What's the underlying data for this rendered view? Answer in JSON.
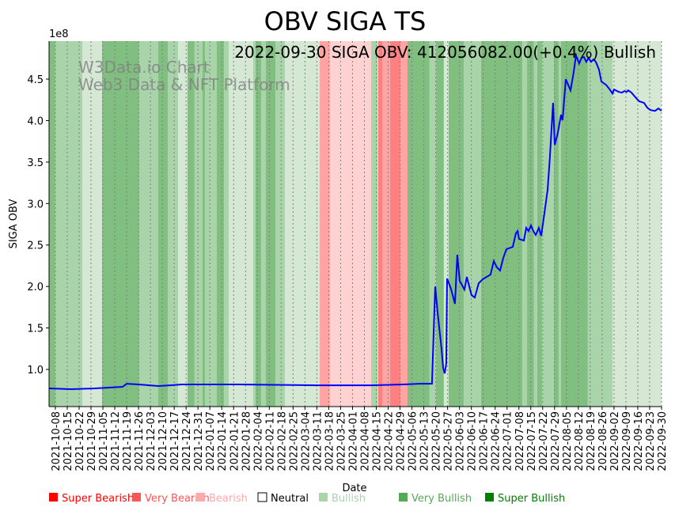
{
  "chart_data": {
    "type": "line",
    "title": "OBV SIGA TS",
    "annotation": "2022-09-30 SIGA OBV: 412056082.00(+0.4%) Bullish",
    "watermark": [
      "W3Data.io Chart",
      "Web3 Data & NFT Platform"
    ],
    "xlabel": "Date",
    "ylabel": "SIGA OBV",
    "y_offset_label": "1e8",
    "xlim_days": [
      0,
      360.7
    ],
    "ylim": [
      0.552,
      4.958
    ],
    "yticks": [
      1.0,
      1.5,
      2.0,
      2.5,
      3.0,
      3.5,
      4.0,
      4.5
    ],
    "ytick_labels": [
      "1.0",
      "1.5",
      "2.0",
      "2.5",
      "3.0",
      "3.5",
      "4.0",
      "4.5"
    ],
    "xtick_first_day": 3.7,
    "xtick_step_days": 7,
    "xtick_labels": [
      "2021-10-08",
      "2021-10-15",
      "2021-10-22",
      "2021-10-29",
      "2021-11-05",
      "2021-11-12",
      "2021-11-19",
      "2021-11-26",
      "2021-12-03",
      "2021-12-10",
      "2021-12-17",
      "2021-12-24",
      "2021-12-31",
      "2022-01-07",
      "2022-01-14",
      "2022-01-21",
      "2022-01-28",
      "2022-02-04",
      "2022-02-11",
      "2022-02-18",
      "2022-02-25",
      "2022-03-04",
      "2022-03-11",
      "2022-03-18",
      "2022-03-25",
      "2022-04-01",
      "2022-04-08",
      "2022-04-15",
      "2022-04-22",
      "2022-04-29",
      "2022-05-06",
      "2022-05-13",
      "2022-05-20",
      "2022-05-27",
      "2022-06-03",
      "2022-06-10",
      "2022-06-17",
      "2022-06-24",
      "2022-07-01",
      "2022-07-08",
      "2022-07-15",
      "2022-07-22",
      "2022-07-29",
      "2022-08-05",
      "2022-08-12",
      "2022-08-19",
      "2022-08-26",
      "2022-09-02",
      "2022-09-09",
      "2022-09-16",
      "2022-09-23",
      "2022-09-30"
    ],
    "series": [
      {
        "name": "OBV",
        "color": "#0000ff",
        "x_days": [
          0,
          13.0,
          27.0,
          43.3,
          45.7,
          52.7,
          64.3,
          71.3,
          78.3,
          110.9,
          157.5,
          190.1,
          208.8,
          218.1,
          225.5,
          226.5,
          227.4,
          228.8,
          231.1,
          232.1,
          233.0,
          233.9,
          234.4,
          236.7,
          239.0,
          240.4,
          241.8,
          244.6,
          246.0,
          248.8,
          250.7,
          253.0,
          255.4,
          260.0,
          261.9,
          263.7,
          265.6,
          267.5,
          269.3,
          273.1,
          274.9,
          275.9,
          276.8,
          279.6,
          281.0,
          282.4,
          283.8,
          285.2,
          286.6,
          288.4,
          289.8,
          291.7,
          293.6,
          294.9,
          296.8,
          297.8,
          299.6,
          301.5,
          302.4,
          304.3,
          307.1,
          308.9,
          310.3,
          312.2,
          313.6,
          315.0,
          316.4,
          317.8,
          319.2,
          320.6,
          322.0,
          323.9,
          325.3,
          328.0,
          329.9,
          331.8,
          332.7,
          335.5,
          337.4,
          338.8,
          340.2,
          341.1,
          343.0,
          346.2,
          347.6,
          350.4,
          352.3,
          354.1,
          356.9,
          358.8,
          360.7
        ],
        "values": [
          0.771,
          0.762,
          0.771,
          0.79,
          0.828,
          0.819,
          0.8,
          0.809,
          0.819,
          0.819,
          0.809,
          0.809,
          0.819,
          0.828,
          0.828,
          1.448,
          2.001,
          1.686,
          1.257,
          1.019,
          0.952,
          1.067,
          2.096,
          1.972,
          1.791,
          2.382,
          2.068,
          1.963,
          2.115,
          1.896,
          1.867,
          2.039,
          2.087,
          2.144,
          2.306,
          2.23,
          2.192,
          2.344,
          2.449,
          2.478,
          2.64,
          2.668,
          2.573,
          2.554,
          2.706,
          2.668,
          2.735,
          2.668,
          2.621,
          2.706,
          2.611,
          2.878,
          3.164,
          3.545,
          4.213,
          3.707,
          3.85,
          4.07,
          4.003,
          4.499,
          4.365,
          4.575,
          4.785,
          4.689,
          4.756,
          4.766,
          4.708,
          4.756,
          4.708,
          4.737,
          4.708,
          4.613,
          4.47,
          4.432,
          4.384,
          4.327,
          4.375,
          4.346,
          4.337,
          4.356,
          4.346,
          4.365,
          4.337,
          4.26,
          4.232,
          4.213,
          4.155,
          4.127,
          4.117,
          4.146,
          4.12
        ]
      }
    ],
    "regime_levels": {
      "-3": "Super Bearish",
      "-2": "Very Bearish",
      "-1": "Bearish",
      "0": "Neutral",
      "1": "Bullish",
      "2": "Very Bullish",
      "3": "Super Bullish"
    },
    "bands": [
      [
        0,
        3.7,
        3
      ],
      [
        3.7,
        19.6,
        2
      ],
      [
        19.6,
        31.2,
        1
      ],
      [
        31.2,
        53.1,
        3
      ],
      [
        53.1,
        64.3,
        2
      ],
      [
        64.3,
        69.9,
        3
      ],
      [
        69.9,
        76.0,
        2
      ],
      [
        76.0,
        81.5,
        1
      ],
      [
        81.5,
        85.7,
        3
      ],
      [
        85.7,
        90.4,
        2
      ],
      [
        90.4,
        91.8,
        3
      ],
      [
        91.8,
        98.8,
        2
      ],
      [
        98.8,
        103.0,
        3
      ],
      [
        103.0,
        105.8,
        2
      ],
      [
        105.8,
        120.2,
        1
      ],
      [
        120.2,
        121.6,
        2
      ],
      [
        121.6,
        124.9,
        3
      ],
      [
        124.9,
        127.7,
        2
      ],
      [
        127.7,
        133.3,
        3
      ],
      [
        133.3,
        138.9,
        2
      ],
      [
        138.9,
        159.4,
        1
      ],
      [
        159.4,
        165.4,
        -2
      ],
      [
        165.4,
        189.7,
        -1
      ],
      [
        189.7,
        193.4,
        2
      ],
      [
        193.4,
        193.8,
        1
      ],
      [
        193.8,
        196.2,
        -3
      ],
      [
        196.2,
        200.8,
        -2
      ],
      [
        200.8,
        206.9,
        -3
      ],
      [
        206.9,
        211.1,
        -2
      ],
      [
        211.1,
        224.1,
        3
      ],
      [
        224.1,
        227.9,
        2
      ],
      [
        227.9,
        232.5,
        3
      ],
      [
        232.5,
        235.3,
        1
      ],
      [
        235.3,
        244.2,
        3
      ],
      [
        244.2,
        254.4,
        2
      ],
      [
        254.4,
        278.7,
        3
      ],
      [
        278.7,
        281.5,
        2
      ],
      [
        281.5,
        285.6,
        3
      ],
      [
        285.6,
        287.5,
        2
      ],
      [
        287.5,
        290.3,
        3
      ],
      [
        290.3,
        297.3,
        2
      ],
      [
        297.3,
        300.1,
        3
      ],
      [
        300.1,
        301.5,
        2
      ],
      [
        301.5,
        317.3,
        3
      ],
      [
        317.3,
        331.8,
        2
      ],
      [
        331.8,
        360.7,
        1
      ]
    ],
    "band_colors": {
      "-3": "#ff8080",
      "-2": "#ffa3a3",
      "-1": "#ffd1d1",
      "1": "#d5e8d4",
      "2": "#a9d4a9",
      "3": "#80bf80"
    },
    "legend": [
      {
        "label": "Super Bearish",
        "color": "#ff0000",
        "text_color": "#ff0000"
      },
      {
        "label": "Very Bearish",
        "color": "#ff5555",
        "text_color": "#ff5555"
      },
      {
        "label": "Bearish",
        "color": "#ffaaaa",
        "text_color": "#ffaaaa"
      },
      {
        "label": "Neutral",
        "color": "#ffffff",
        "text_color": "#000000"
      },
      {
        "label": "Bullish",
        "color": "#aad4aa",
        "text_color": "#aad4aa"
      },
      {
        "label": "Very Bullish",
        "color": "#55aa55",
        "text_color": "#55aa55"
      },
      {
        "label": "Super Bullish",
        "color": "#008000",
        "text_color": "#008000"
      }
    ],
    "legend_placement": "bottom"
  }
}
